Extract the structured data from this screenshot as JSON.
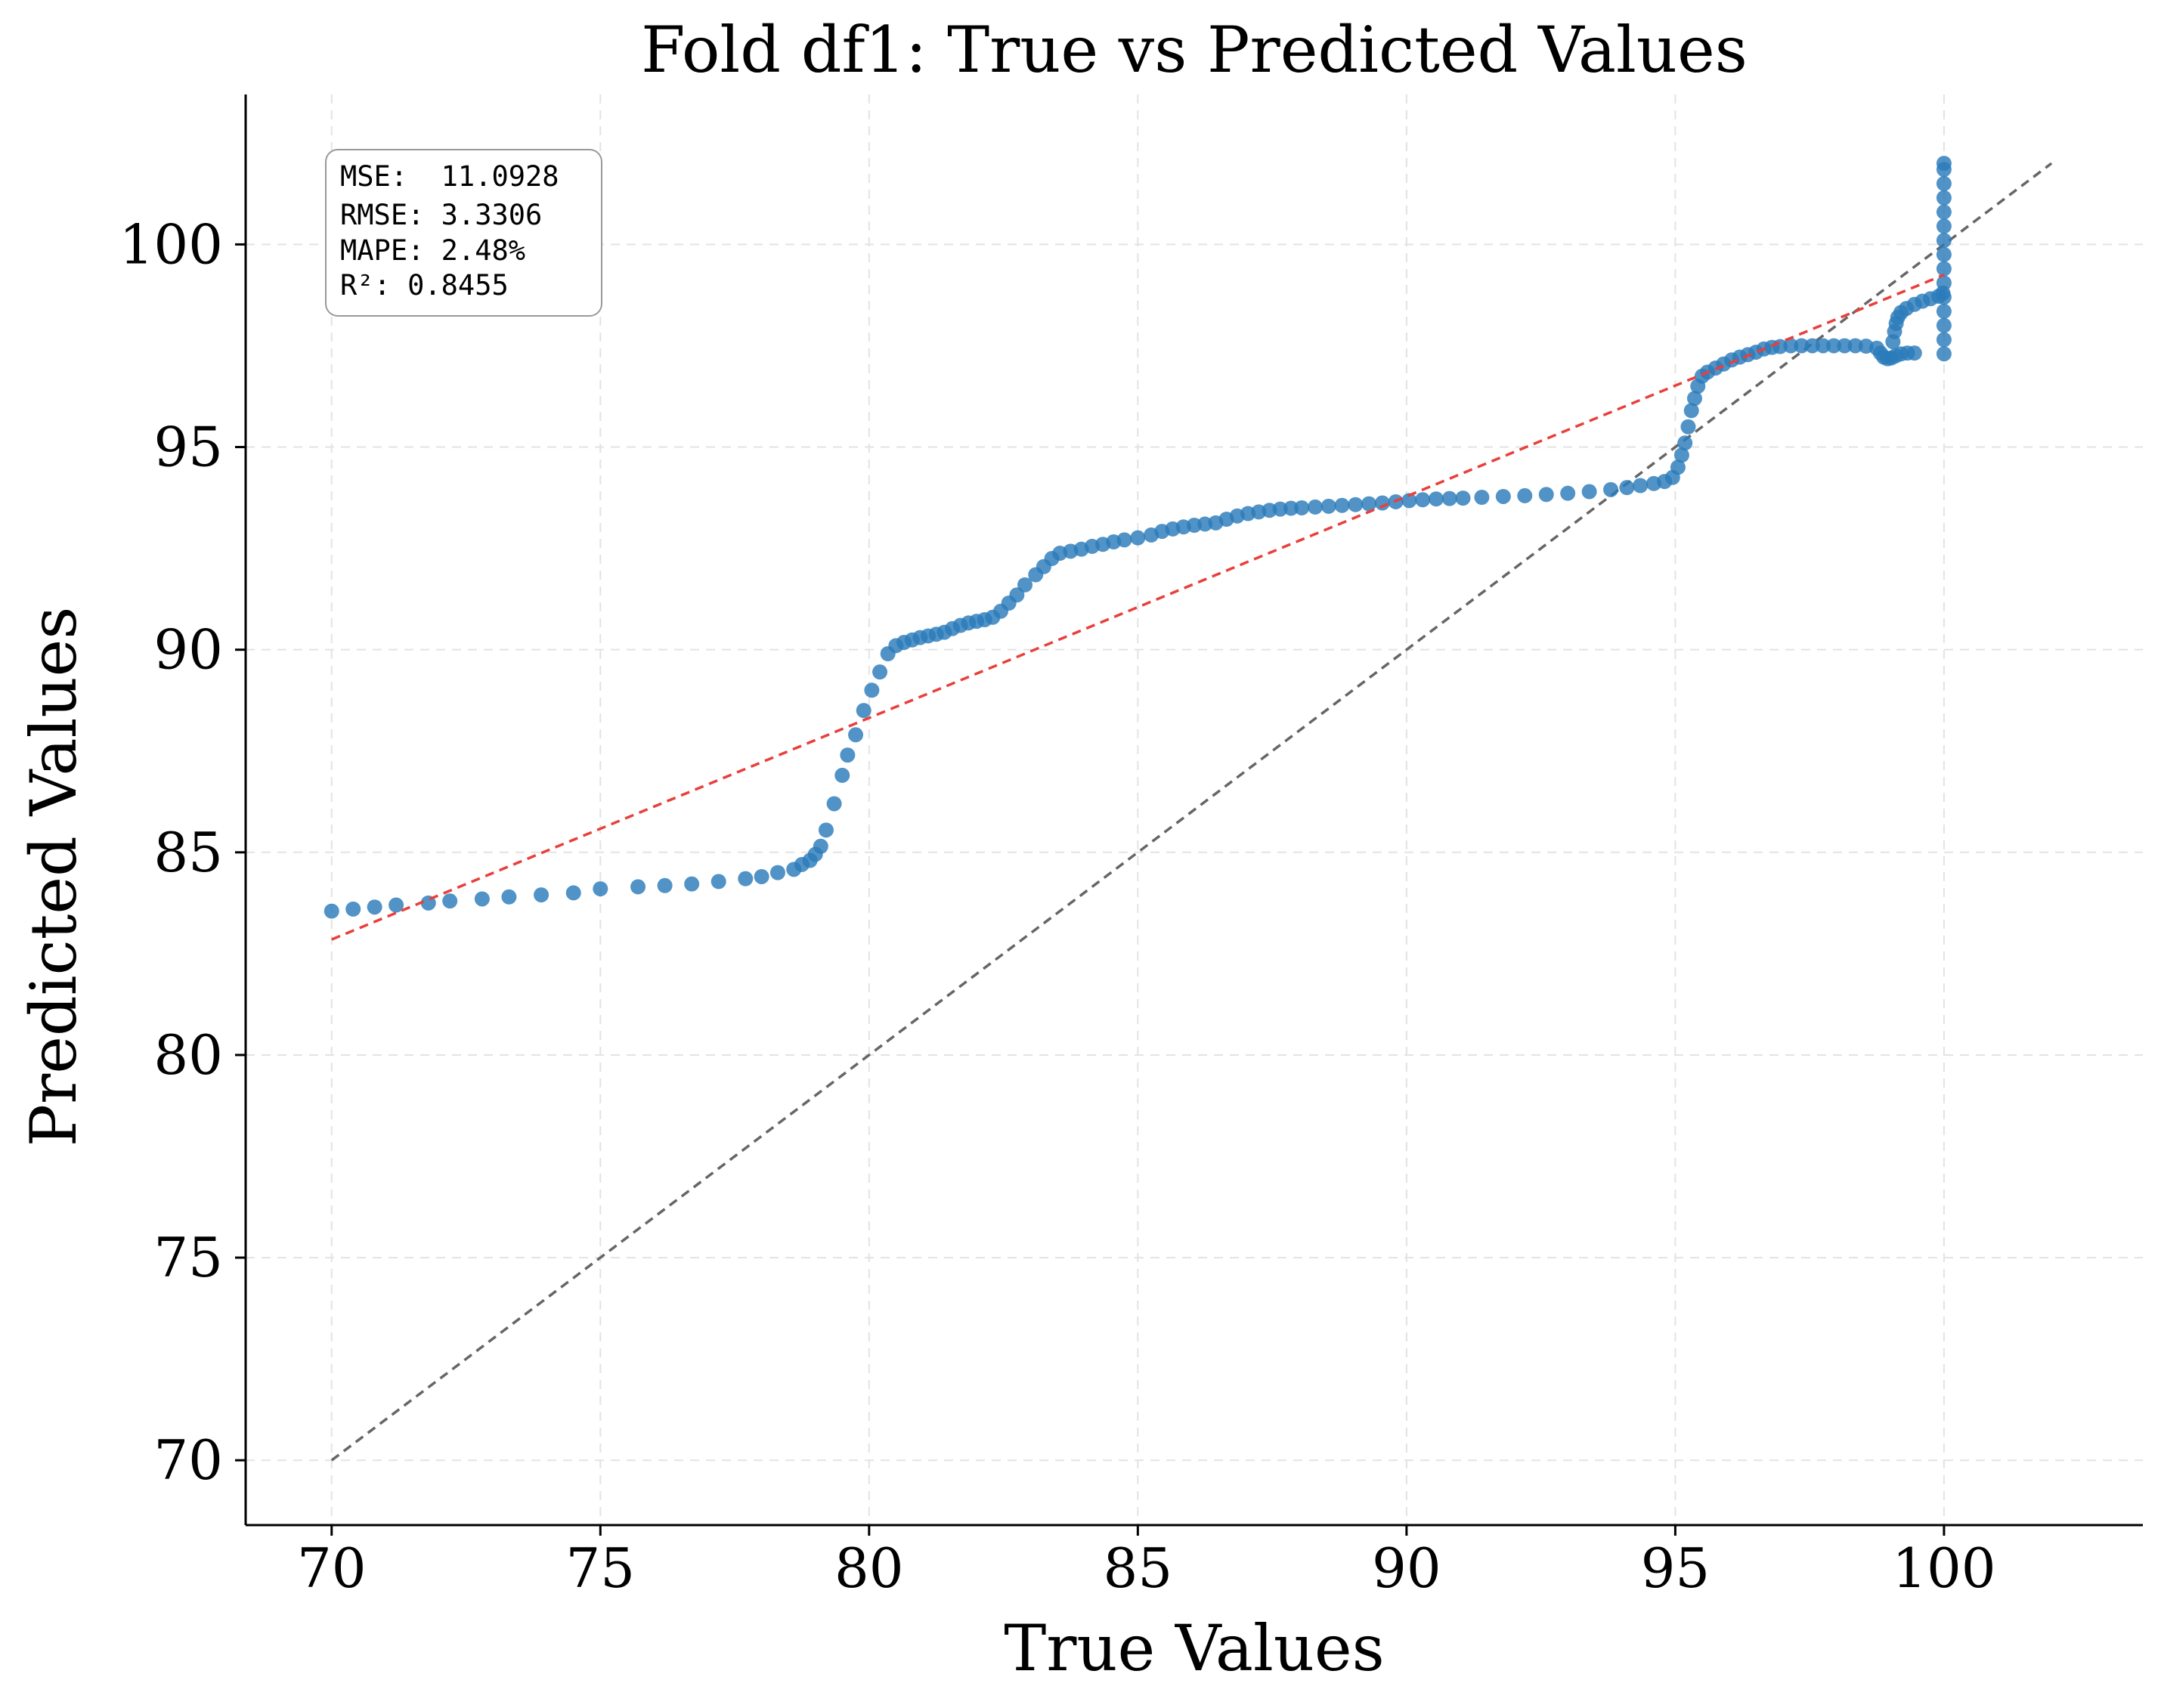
{
  "chart_data": {
    "type": "scatter",
    "title": "Fold df1: True vs Predicted Values",
    "xlabel": "True Values",
    "ylabel": "Predicted Values",
    "xlim": [
      68.4,
      103.7
    ],
    "ylim": [
      68.4,
      103.7
    ],
    "xticks": [
      70,
      75,
      80,
      85,
      90,
      95,
      100
    ],
    "yticks": [
      70,
      75,
      80,
      85,
      90,
      95,
      100
    ],
    "grid": true,
    "metrics_box": {
      "placement": "top-left",
      "lines": [
        "MSE:  11.0928",
        "RMSE: 3.3306",
        "MAPE: 2.48%",
        "R²: 0.8455"
      ]
    },
    "reference_line": {
      "name": "",
      "x": [
        70,
        102
      ],
      "y": [
        70,
        102
      ],
      "color": "#666666",
      "style": "dashed"
    },
    "fit_line": {
      "name": "",
      "x": [
        70,
        100
      ],
      "y": [
        82.85,
        99.25
      ],
      "color": "#e8403c",
      "style": "dashed"
    },
    "series": [
      {
        "name": "",
        "color": "#2b7bba",
        "points": [
          [
            70.0,
            83.55
          ],
          [
            70.4,
            83.6
          ],
          [
            70.8,
            83.65
          ],
          [
            71.2,
            83.7
          ],
          [
            71.8,
            83.75
          ],
          [
            72.2,
            83.8
          ],
          [
            72.8,
            83.85
          ],
          [
            73.3,
            83.9
          ],
          [
            73.9,
            83.95
          ],
          [
            74.5,
            84.0
          ],
          [
            75.0,
            84.1
          ],
          [
            75.7,
            84.15
          ],
          [
            76.2,
            84.18
          ],
          [
            76.7,
            84.22
          ],
          [
            77.2,
            84.28
          ],
          [
            77.7,
            84.35
          ],
          [
            78.0,
            84.4
          ],
          [
            78.3,
            84.5
          ],
          [
            78.6,
            84.58
          ],
          [
            78.75,
            84.7
          ],
          [
            78.9,
            84.8
          ],
          [
            79.0,
            84.95
          ],
          [
            79.1,
            85.15
          ],
          [
            79.2,
            85.55
          ],
          [
            79.35,
            86.2
          ],
          [
            79.5,
            86.9
          ],
          [
            79.6,
            87.4
          ],
          [
            79.75,
            87.9
          ],
          [
            79.9,
            88.5
          ],
          [
            80.05,
            89.0
          ],
          [
            80.2,
            89.45
          ],
          [
            80.35,
            89.9
          ],
          [
            80.5,
            90.1
          ],
          [
            80.65,
            90.18
          ],
          [
            80.8,
            90.24
          ],
          [
            80.95,
            90.3
          ],
          [
            81.1,
            90.34
          ],
          [
            81.25,
            90.38
          ],
          [
            81.4,
            90.43
          ],
          [
            81.55,
            90.52
          ],
          [
            81.7,
            90.6
          ],
          [
            81.85,
            90.66
          ],
          [
            82.0,
            90.7
          ],
          [
            82.15,
            90.74
          ],
          [
            82.3,
            90.8
          ],
          [
            82.45,
            90.95
          ],
          [
            82.6,
            91.15
          ],
          [
            82.75,
            91.35
          ],
          [
            82.9,
            91.6
          ],
          [
            83.1,
            91.85
          ],
          [
            83.25,
            92.05
          ],
          [
            83.4,
            92.25
          ],
          [
            83.55,
            92.38
          ],
          [
            83.75,
            92.43
          ],
          [
            83.95,
            92.48
          ],
          [
            84.15,
            92.55
          ],
          [
            84.35,
            92.6
          ],
          [
            84.55,
            92.66
          ],
          [
            84.75,
            92.71
          ],
          [
            85.0,
            92.76
          ],
          [
            85.25,
            92.83
          ],
          [
            85.45,
            92.92
          ],
          [
            85.65,
            92.98
          ],
          [
            85.85,
            93.03
          ],
          [
            86.05,
            93.07
          ],
          [
            86.25,
            93.1
          ],
          [
            86.45,
            93.13
          ],
          [
            86.65,
            93.22
          ],
          [
            86.85,
            93.3
          ],
          [
            87.05,
            93.36
          ],
          [
            87.25,
            93.4
          ],
          [
            87.45,
            93.44
          ],
          [
            87.65,
            93.47
          ],
          [
            87.85,
            93.49
          ],
          [
            88.05,
            93.5
          ],
          [
            88.3,
            93.52
          ],
          [
            88.55,
            93.54
          ],
          [
            88.8,
            93.56
          ],
          [
            89.05,
            93.58
          ],
          [
            89.3,
            93.6
          ],
          [
            89.55,
            93.62
          ],
          [
            89.8,
            93.65
          ],
          [
            90.05,
            93.68
          ],
          [
            90.3,
            93.7
          ],
          [
            90.55,
            93.72
          ],
          [
            90.8,
            93.73
          ],
          [
            91.05,
            93.74
          ],
          [
            91.4,
            93.76
          ],
          [
            91.8,
            93.78
          ],
          [
            92.2,
            93.8
          ],
          [
            92.6,
            93.83
          ],
          [
            93.0,
            93.86
          ],
          [
            93.4,
            93.9
          ],
          [
            93.8,
            93.95
          ],
          [
            94.1,
            94.0
          ],
          [
            94.35,
            94.05
          ],
          [
            94.6,
            94.1
          ],
          [
            94.8,
            94.15
          ],
          [
            94.95,
            94.25
          ],
          [
            95.05,
            94.5
          ],
          [
            95.12,
            94.8
          ],
          [
            95.18,
            95.1
          ],
          [
            95.24,
            95.5
          ],
          [
            95.3,
            95.9
          ],
          [
            95.36,
            96.2
          ],
          [
            95.42,
            96.5
          ],
          [
            95.5,
            96.75
          ],
          [
            95.6,
            96.85
          ],
          [
            95.75,
            96.95
          ],
          [
            95.9,
            97.05
          ],
          [
            96.05,
            97.15
          ],
          [
            96.2,
            97.22
          ],
          [
            96.35,
            97.28
          ],
          [
            96.5,
            97.34
          ],
          [
            96.65,
            97.42
          ],
          [
            96.8,
            97.46
          ],
          [
            96.95,
            97.48
          ],
          [
            97.15,
            97.5
          ],
          [
            97.35,
            97.5
          ],
          [
            97.55,
            97.5
          ],
          [
            97.75,
            97.5
          ],
          [
            97.95,
            97.5
          ],
          [
            98.15,
            97.5
          ],
          [
            98.35,
            97.5
          ],
          [
            98.55,
            97.49
          ],
          [
            98.75,
            97.44
          ],
          [
            98.82,
            97.32
          ],
          [
            98.88,
            97.22
          ],
          [
            98.95,
            97.18
          ],
          [
            99.02,
            97.2
          ],
          [
            99.1,
            97.25
          ],
          [
            99.2,
            97.3
          ],
          [
            99.32,
            97.32
          ],
          [
            99.45,
            97.32
          ],
          [
            99.05,
            97.6
          ],
          [
            99.08,
            97.85
          ],
          [
            99.11,
            98.05
          ],
          [
            99.14,
            98.2
          ],
          [
            99.2,
            98.32
          ],
          [
            99.3,
            98.42
          ],
          [
            99.45,
            98.52
          ],
          [
            99.6,
            98.6
          ],
          [
            99.75,
            98.66
          ],
          [
            99.9,
            98.72
          ],
          [
            99.98,
            98.8
          ],
          [
            100.0,
            97.3
          ],
          [
            100.0,
            97.65
          ],
          [
            100.0,
            98.0
          ],
          [
            100.0,
            98.35
          ],
          [
            100.0,
            98.7
          ],
          [
            100.0,
            99.05
          ],
          [
            100.0,
            99.4
          ],
          [
            100.0,
            99.75
          ],
          [
            100.0,
            100.1
          ],
          [
            100.0,
            100.45
          ],
          [
            100.0,
            100.8
          ],
          [
            100.0,
            101.15
          ],
          [
            100.0,
            101.5
          ],
          [
            100.0,
            101.85
          ],
          [
            100.0,
            102.0
          ]
        ]
      }
    ]
  }
}
